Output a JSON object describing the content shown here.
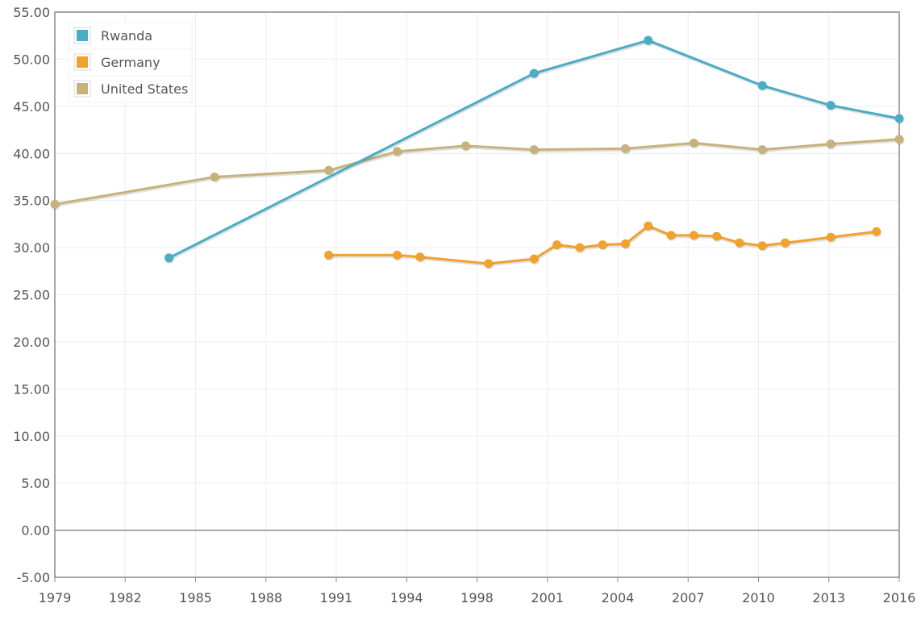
{
  "chart_data": {
    "type": "line",
    "x_ticks": [
      "1979",
      "1982",
      "1985",
      "1988",
      "1991",
      "1994",
      "1998",
      "2001",
      "2004",
      "2007",
      "2010",
      "2013",
      "2016"
    ],
    "y_ticks": [
      "55.00",
      "50.00",
      "45.00",
      "40.00",
      "35.00",
      "30.00",
      "25.00",
      "20.00",
      "15.00",
      "10.00",
      "5.00",
      "0.00",
      "-5.00"
    ],
    "xlim": [
      1979,
      2016
    ],
    "ylim": [
      -5,
      55
    ],
    "grid": true,
    "legend_position": "top-left",
    "series": [
      {
        "name": "Rwanda",
        "color": "#4bacc6",
        "points": [
          [
            1984,
            28.9
          ],
          [
            2000,
            48.5
          ],
          [
            2005,
            52.0
          ],
          [
            2010,
            47.2
          ],
          [
            2013,
            45.1
          ],
          [
            2016,
            43.7
          ]
        ]
      },
      {
        "name": "Germany",
        "color": "#f0a22e",
        "points": [
          [
            1991,
            29.2
          ],
          [
            1994,
            29.2
          ],
          [
            1995,
            29.0
          ],
          [
            1998,
            28.3
          ],
          [
            2000,
            28.8
          ],
          [
            2001,
            30.3
          ],
          [
            2002,
            30.0
          ],
          [
            2003,
            30.3
          ],
          [
            2004,
            30.4
          ],
          [
            2005,
            32.3
          ],
          [
            2006,
            31.3
          ],
          [
            2007,
            31.3
          ],
          [
            2008,
            31.2
          ],
          [
            2009,
            30.5
          ],
          [
            2010,
            30.2
          ],
          [
            2011,
            30.5
          ],
          [
            2013,
            31.1
          ],
          [
            2015,
            31.7
          ]
        ]
      },
      {
        "name": "United States",
        "color": "#c8b27c",
        "points": [
          [
            1979,
            34.6
          ],
          [
            1986,
            37.5
          ],
          [
            1991,
            38.2
          ],
          [
            1994,
            40.2
          ],
          [
            1997,
            40.8
          ],
          [
            2000,
            40.4
          ],
          [
            2004,
            40.5
          ],
          [
            2007,
            41.1
          ],
          [
            2010,
            40.4
          ],
          [
            2013,
            41.0
          ],
          [
            2016,
            41.5
          ]
        ]
      }
    ]
  }
}
